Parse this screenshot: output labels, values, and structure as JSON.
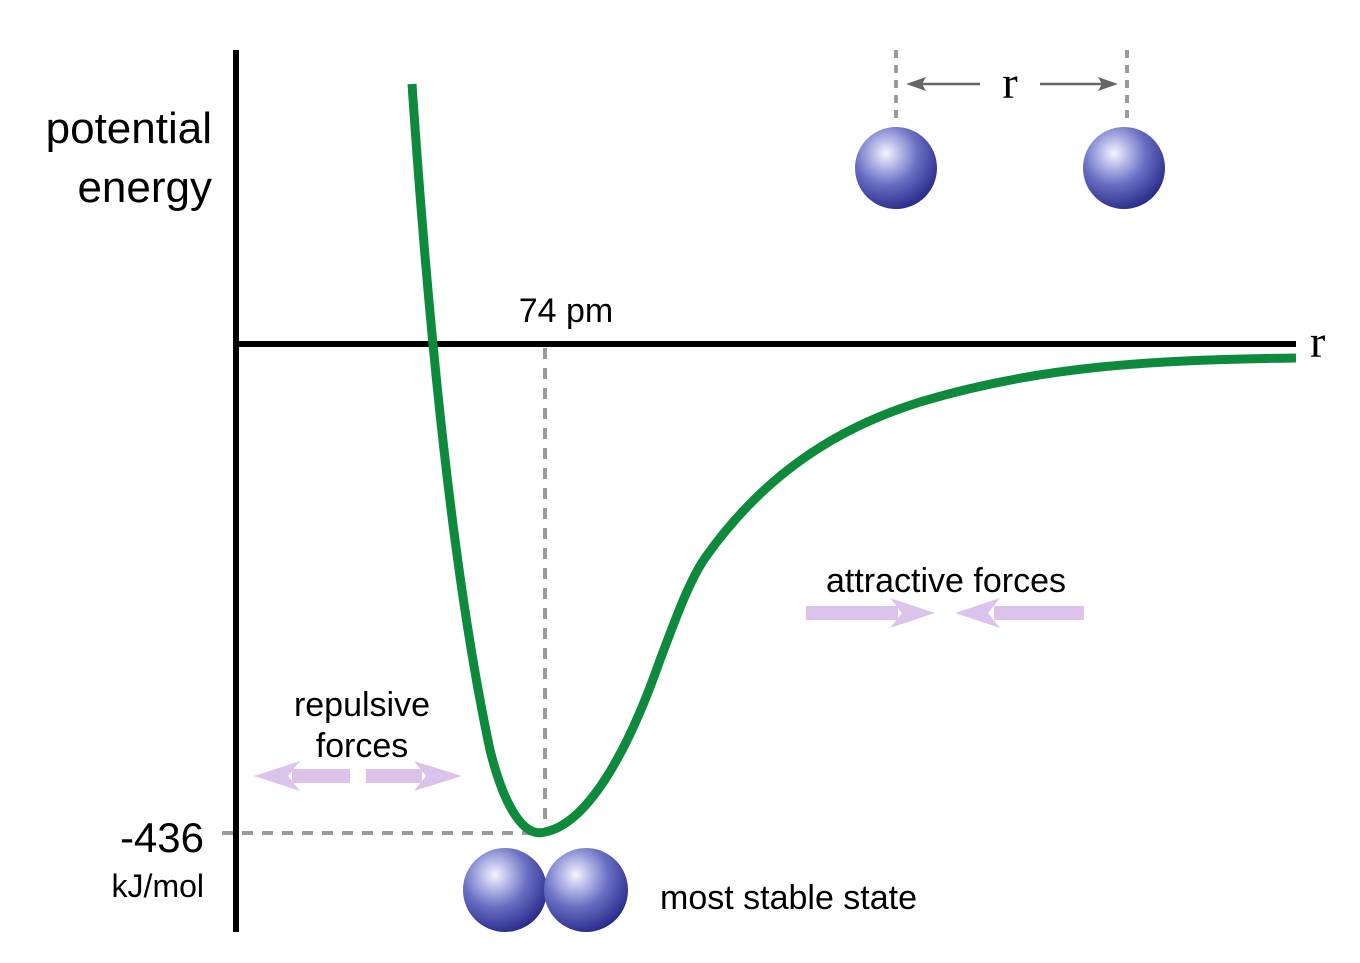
{
  "y_axis_label": [
    "potential",
    "energy"
  ],
  "x_axis_label": "r",
  "separation_label": "r",
  "bond_length_label": "74 pm",
  "minimum_energy_value": "-436",
  "minimum_energy_unit": "kJ/mol",
  "repulsive_label": [
    "repulsive",
    "forces"
  ],
  "attractive_label": "attractive forces",
  "stable_state_label": "most stable state",
  "colors": {
    "curve": "#0e8a3c",
    "axis": "#000000",
    "guide": "#9a9a9a",
    "force_arrow": "#dcc3ec",
    "atom_light": "#d9dcf5",
    "atom_mid": "#6a6fc4",
    "atom_dark": "#2a2d8a"
  },
  "icons": {
    "atom": "sphere-icon",
    "force": "arrow-icon"
  }
}
